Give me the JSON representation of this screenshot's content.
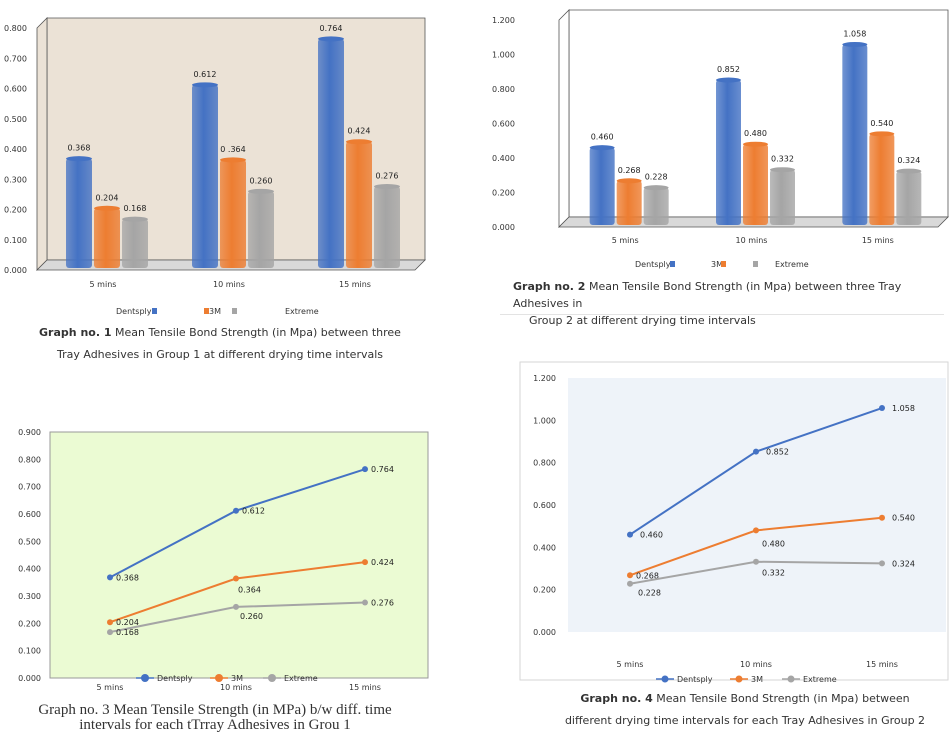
{
  "colors": {
    "dentsply": "#4472c4",
    "threeM": "#ed7d31",
    "extreme": "#a5a5a5",
    "g1_bg": "#ebe2d6",
    "g3_bg": "#ebfbd3",
    "g4_bg": "#eef3f9"
  },
  "chart_data": [
    {
      "type": "bar",
      "categories": [
        "5 mins",
        "10 mins",
        "15 mins"
      ],
      "series": [
        {
          "name": "Dentsply",
          "values": [
            0.368,
            0.612,
            0.764
          ]
        },
        {
          "name": "3M",
          "values": [
            0.204,
            0.364,
            0.424
          ]
        },
        {
          "name": "Extreme",
          "values": [
            0.168,
            0.26,
            0.276
          ]
        }
      ],
      "data_labels": [
        [
          "0.368",
          "0.612",
          "0.764"
        ],
        [
          "0.204",
          "0 .364",
          "0.424"
        ],
        [
          "0.168",
          "0.260",
          "0.276"
        ]
      ],
      "yticks": [
        "0.000",
        "0.100",
        "0.200",
        "0.300",
        "0.400",
        "0.500",
        "0.600",
        "0.700",
        "0.800"
      ],
      "ylim": [
        0,
        0.8
      ],
      "grid": false,
      "legend_position": "bottom",
      "legend_labels": [
        "Dentsply",
        "3M",
        "Extreme"
      ],
      "caption_bold": "Graph no. 1",
      "caption_line1": " Mean Tensile Bond Strength (in Mpa) between three",
      "caption_line2": "Tray Adhesives in Group 1 at different drying time intervals"
    },
    {
      "type": "bar",
      "categories": [
        "5 mins",
        "10 mins",
        "15 mins"
      ],
      "series": [
        {
          "name": "Dentsply",
          "values": [
            0.46,
            0.852,
            1.058
          ]
        },
        {
          "name": "3M",
          "values": [
            0.268,
            0.48,
            0.54
          ]
        },
        {
          "name": "Extreme",
          "values": [
            0.228,
            0.332,
            0.324
          ]
        }
      ],
      "data_labels": [
        [
          "0.460",
          "0.852",
          "1.058"
        ],
        [
          "0.268",
          "0.480",
          "0.540"
        ],
        [
          "0.228",
          "0.332",
          "0.324"
        ]
      ],
      "yticks": [
        "0.000",
        "0.200",
        "0.400",
        "0.600",
        "0.800",
        "1.000",
        "1.200"
      ],
      "ylim": [
        0,
        1.2
      ],
      "grid": false,
      "legend_position": "bottom",
      "legend_labels": [
        "Dentsply",
        "3M",
        "Extreme"
      ],
      "caption_bold": "Graph no. 2",
      "caption_line1": " Mean Tensile Bond Strength (in Mpa) between three Tray Adhesives in",
      "caption_line2": "Group 2 at different drying time intervals"
    },
    {
      "type": "line",
      "categories": [
        "5 mins",
        "10 mins",
        "15 mins"
      ],
      "series": [
        {
          "name": "Dentsply",
          "values": [
            0.368,
            0.612,
            0.764
          ]
        },
        {
          "name": "3M",
          "values": [
            0.204,
            0.364,
            0.424
          ]
        },
        {
          "name": "Extreme",
          "values": [
            0.168,
            0.26,
            0.276
          ]
        }
      ],
      "data_labels": [
        [
          "0.368",
          "0.612",
          "0.764"
        ],
        [
          "0.204",
          "0.364",
          "0.424"
        ],
        [
          "0.168",
          "0.260",
          "0.276"
        ]
      ],
      "yticks": [
        "0.000",
        "0.100",
        "0.200",
        "0.300",
        "0.400",
        "0.500",
        "0.600",
        "0.700",
        "0.800",
        "0.900"
      ],
      "ylim": [
        0,
        0.9
      ],
      "grid": false,
      "legend_position": "bottom",
      "legend_labels": [
        "Dentsply",
        "3M",
        "Extreme"
      ],
      "caption_line1": "Graph no. 3 Mean Tensile Strength (in MPa) b/w diff. time",
      "caption_line2": "intervals for each tTrray Adhesives in Grou 1"
    },
    {
      "type": "line",
      "categories": [
        "5 mins",
        "10 mins",
        "15 mins"
      ],
      "series": [
        {
          "name": "Dentsply",
          "values": [
            0.46,
            0.852,
            1.058
          ]
        },
        {
          "name": "3M",
          "values": [
            0.268,
            0.48,
            0.54
          ]
        },
        {
          "name": "Extreme",
          "values": [
            0.228,
            0.332,
            0.324
          ]
        }
      ],
      "data_labels": [
        [
          "0.460",
          "0.852",
          "1.058"
        ],
        [
          "0.268",
          "0.480",
          "0.540"
        ],
        [
          "0.228",
          "0.332",
          "0.324"
        ]
      ],
      "yticks": [
        "0.000",
        "0.200",
        "0.400",
        "0.600",
        "0.800",
        "1.000",
        "1.200"
      ],
      "ylim": [
        0,
        1.2
      ],
      "grid": false,
      "legend_position": "bottom",
      "legend_labels": [
        "Dentsply",
        "3M",
        "Extreme"
      ],
      "caption_bold": "Graph no. 4",
      "caption_line1": "  Mean Tensile Bond Strength (in Mpa) between",
      "caption_line2": "different drying time intervals for each Tray Adhesives in Group 2"
    }
  ]
}
